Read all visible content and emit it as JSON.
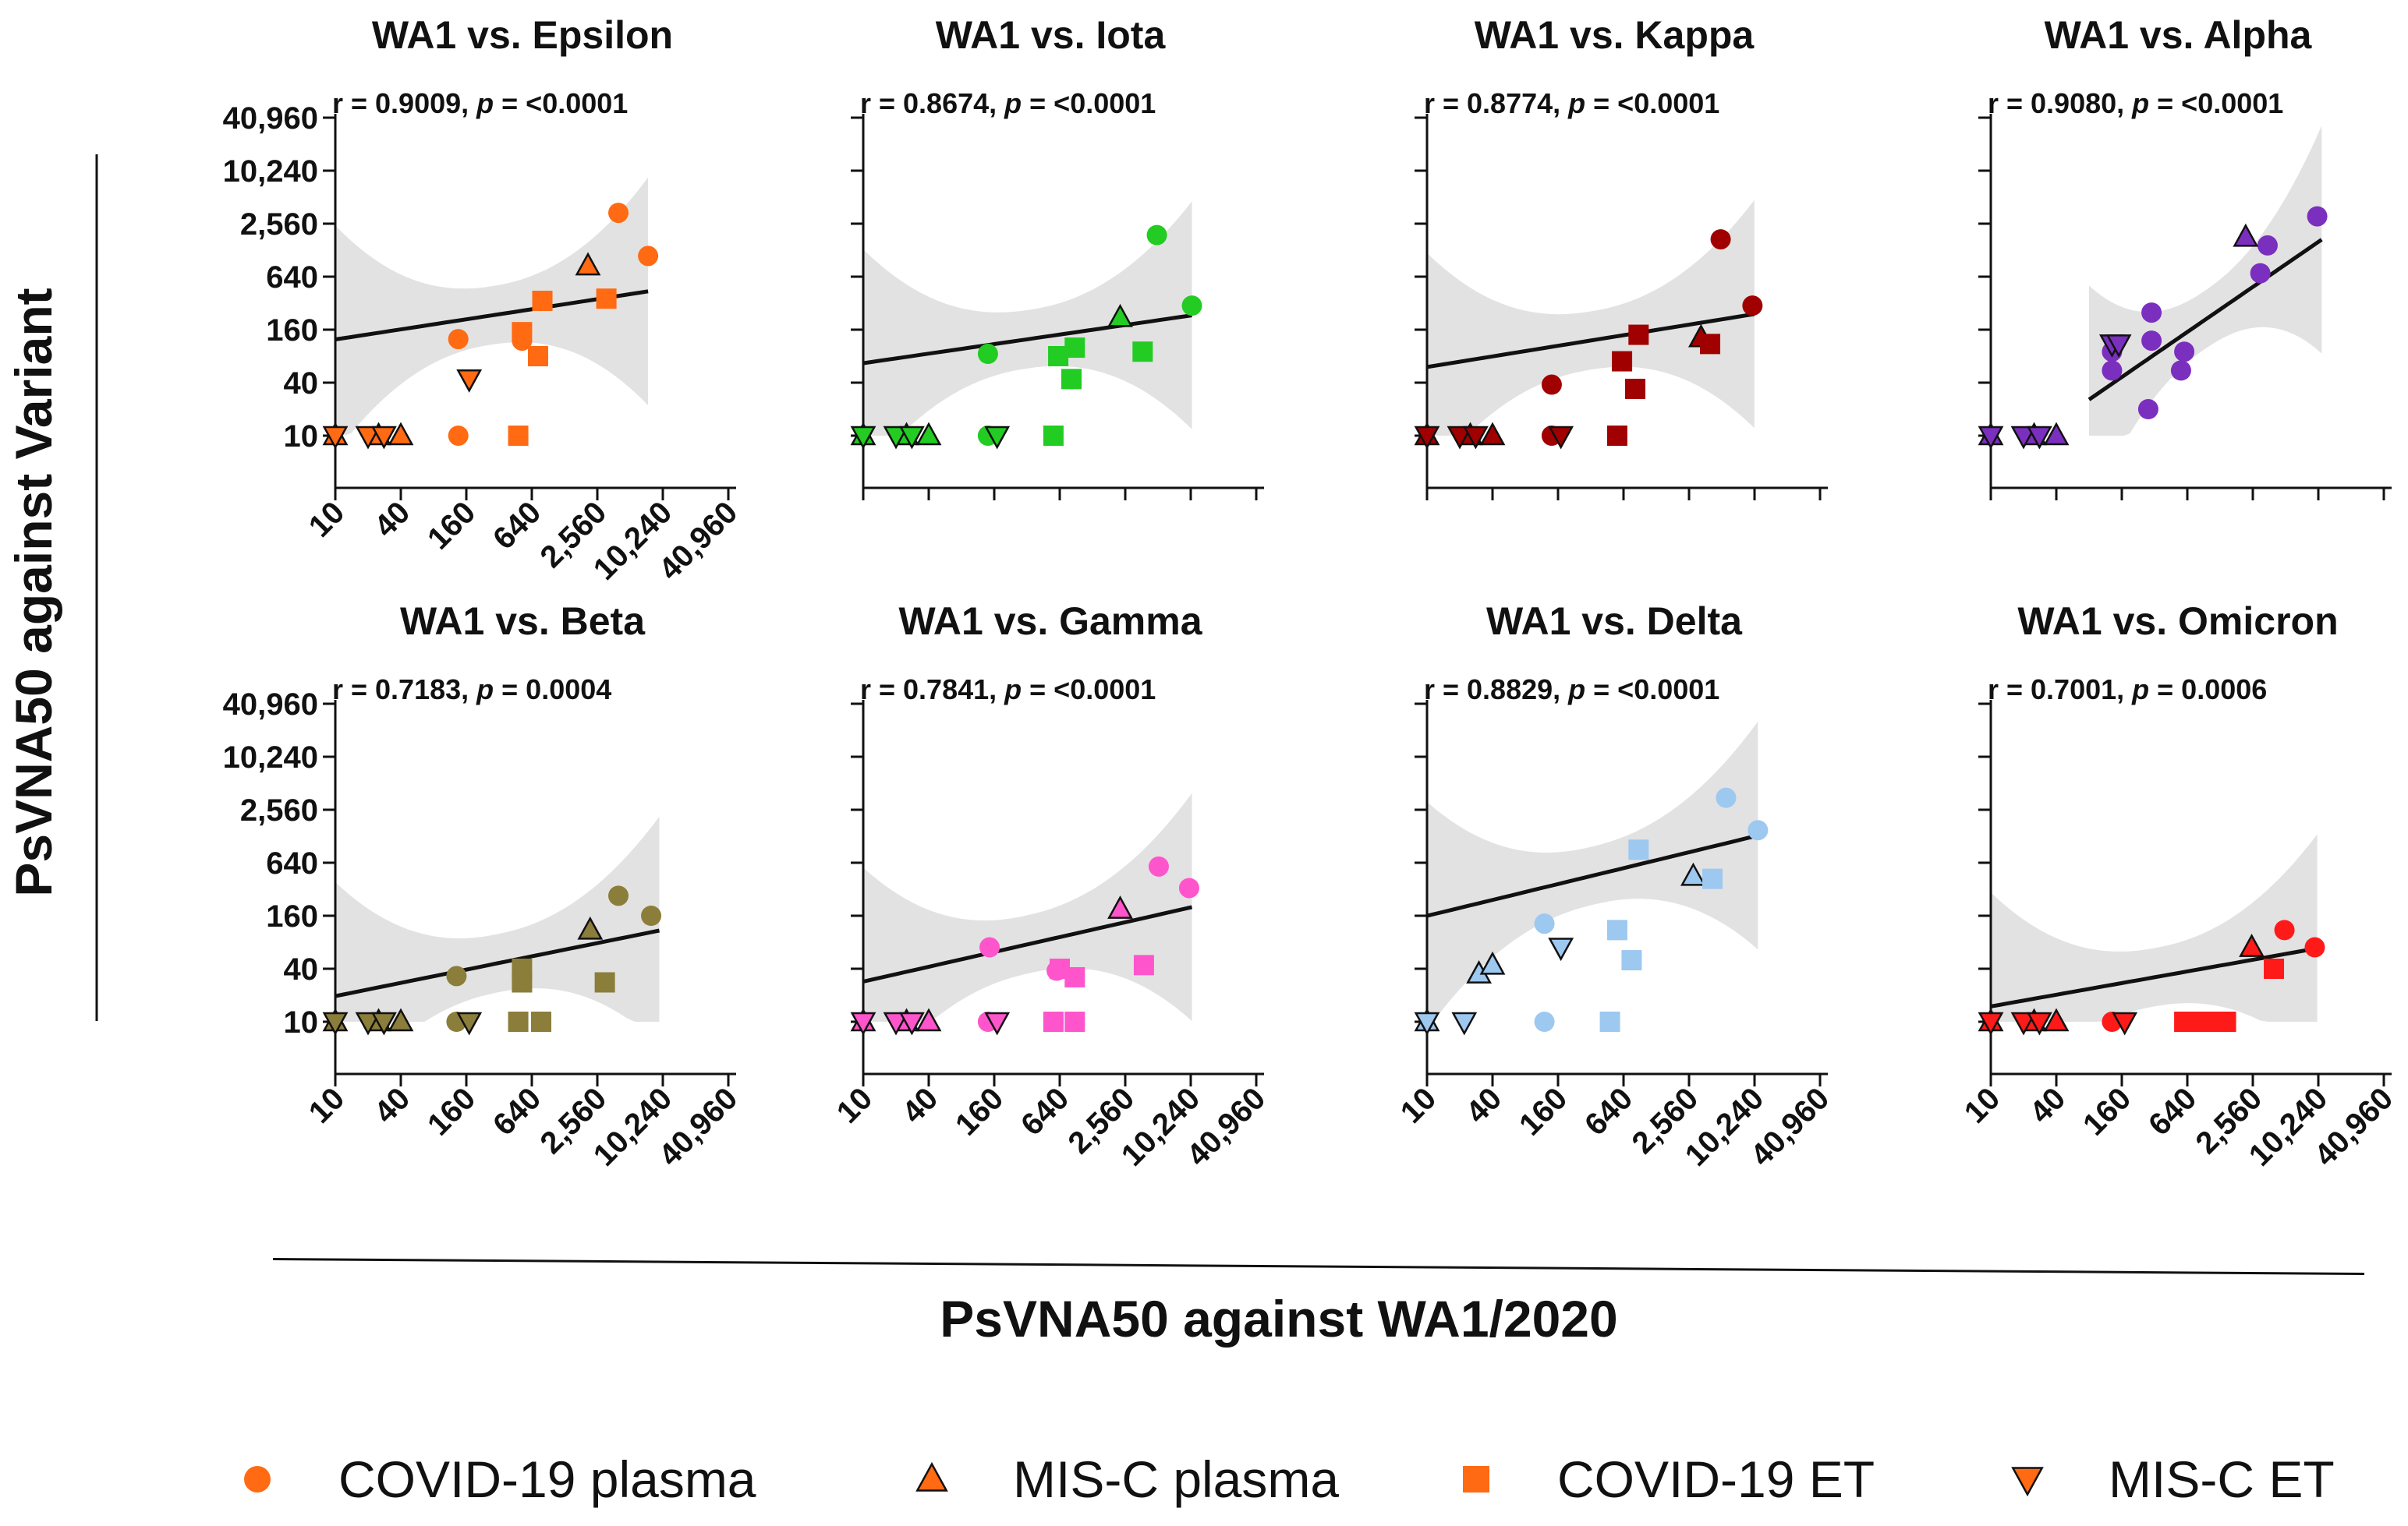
{
  "figure": {
    "ylabel": "PsVNA50 against Variant",
    "xlabel": "PsVNA50 against WA1/2020",
    "legend": [
      {
        "label": "COVID-19 plasma",
        "shape": "circle"
      },
      {
        "label": "MIS-C plasma",
        "shape": "triangle-up"
      },
      {
        "label": "COVID-19 ET",
        "shape": "square"
      },
      {
        "label": "MIS-C ET",
        "shape": "triangle-down"
      }
    ],
    "legend_color": "#FF6A13"
  },
  "chart_data": [
    {
      "type": "scatter",
      "title": "WA1 vs. Epsilon",
      "r": "r = 0.9009, ",
      "p_label": "p",
      "p": " = <0.0001",
      "color": "#FF6A13",
      "xscale": "log4",
      "yscale": "log4",
      "xlim": [
        10,
        40960
      ],
      "ylim": [
        10,
        40960
      ],
      "xticks": [
        "10",
        "40",
        "160",
        "640",
        "2,560",
        "10,240",
        "40,960"
      ],
      "yticks": [
        "10",
        "40",
        "160",
        "640",
        "2,560",
        "10,240",
        "40,960"
      ],
      "fit": {
        "a": 80,
        "b": 0.19,
        "lo": 10,
        "hi": 7500
      },
      "points": [
        {
          "shape": "circle",
          "x": 135,
          "y": 125
        },
        {
          "shape": "circle",
          "x": 135,
          "y": 10
        },
        {
          "shape": "circle",
          "x": 520,
          "y": 120
        },
        {
          "shape": "circle",
          "x": 4000,
          "y": 3400
        },
        {
          "shape": "circle",
          "x": 7500,
          "y": 1100
        },
        {
          "shape": "triangle-up",
          "x": 10,
          "y": 10
        },
        {
          "shape": "triangle-up",
          "x": 25,
          "y": 10
        },
        {
          "shape": "triangle-up",
          "x": 40,
          "y": 10
        },
        {
          "shape": "triangle-up",
          "x": 2100,
          "y": 850
        },
        {
          "shape": "square",
          "x": 480,
          "y": 10
        },
        {
          "shape": "square",
          "x": 520,
          "y": 150
        },
        {
          "shape": "square",
          "x": 730,
          "y": 80
        },
        {
          "shape": "square",
          "x": 800,
          "y": 340
        },
        {
          "shape": "square",
          "x": 3100,
          "y": 360
        },
        {
          "shape": "triangle-down",
          "x": 10,
          "y": 10
        },
        {
          "shape": "triangle-down",
          "x": 20,
          "y": 10
        },
        {
          "shape": "triangle-down",
          "x": 28,
          "y": 10
        },
        {
          "shape": "triangle-down",
          "x": 170,
          "y": 44
        }
      ]
    },
    {
      "type": "scatter",
      "title": "WA1 vs. Iota",
      "r": "r = 0.8674, ",
      "p_label": "p",
      "p": " = <0.0001",
      "color": "#22CC22",
      "xscale": "log4",
      "yscale": "log4",
      "xlim": [
        10,
        40960
      ],
      "ylim": [
        10,
        40960
      ],
      "xticks": [],
      "yticks": [],
      "fit": {
        "a": 44,
        "b": 0.18,
        "lo": 10,
        "hi": 10500
      },
      "points": [
        {
          "shape": "circle",
          "x": 140,
          "y": 85
        },
        {
          "shape": "circle",
          "x": 140,
          "y": 10
        },
        {
          "shape": "circle",
          "x": 5000,
          "y": 1900
        },
        {
          "shape": "circle",
          "x": 10500,
          "y": 300
        },
        {
          "shape": "triangle-up",
          "x": 10,
          "y": 10
        },
        {
          "shape": "triangle-up",
          "x": 25,
          "y": 10
        },
        {
          "shape": "triangle-up",
          "x": 40,
          "y": 10
        },
        {
          "shape": "triangle-up",
          "x": 2300,
          "y": 220
        },
        {
          "shape": "square",
          "x": 560,
          "y": 10
        },
        {
          "shape": "square",
          "x": 620,
          "y": 80
        },
        {
          "shape": "square",
          "x": 820,
          "y": 44
        },
        {
          "shape": "square",
          "x": 880,
          "y": 100
        },
        {
          "shape": "square",
          "x": 3700,
          "y": 90
        },
        {
          "shape": "triangle-down",
          "x": 10,
          "y": 10
        },
        {
          "shape": "triangle-down",
          "x": 20,
          "y": 10
        },
        {
          "shape": "triangle-down",
          "x": 28,
          "y": 10
        },
        {
          "shape": "triangle-down",
          "x": 170,
          "y": 10
        }
      ]
    },
    {
      "type": "scatter",
      "title": "WA1 vs. Kappa",
      "r": "r = 0.8774, ",
      "p_label": "p",
      "p": " = <0.0001",
      "color": "#A00000",
      "xscale": "log4",
      "yscale": "log4",
      "xlim": [
        10,
        40960
      ],
      "ylim": [
        10,
        40960
      ],
      "xticks": [],
      "yticks": [],
      "fit": {
        "a": 38,
        "b": 0.2,
        "lo": 10,
        "hi": 10200
      },
      "points": [
        {
          "shape": "circle",
          "x": 140,
          "y": 38
        },
        {
          "shape": "circle",
          "x": 140,
          "y": 10
        },
        {
          "shape": "circle",
          "x": 5000,
          "y": 1700
        },
        {
          "shape": "circle",
          "x": 9800,
          "y": 300
        },
        {
          "shape": "triangle-up",
          "x": 10,
          "y": 10
        },
        {
          "shape": "triangle-up",
          "x": 25,
          "y": 10
        },
        {
          "shape": "triangle-up",
          "x": 40,
          "y": 10
        },
        {
          "shape": "triangle-up",
          "x": 3300,
          "y": 130
        },
        {
          "shape": "square",
          "x": 560,
          "y": 10
        },
        {
          "shape": "square",
          "x": 620,
          "y": 70
        },
        {
          "shape": "square",
          "x": 820,
          "y": 34
        },
        {
          "shape": "square",
          "x": 880,
          "y": 140
        },
        {
          "shape": "square",
          "x": 4000,
          "y": 110
        },
        {
          "shape": "triangle-down",
          "x": 10,
          "y": 10
        },
        {
          "shape": "triangle-down",
          "x": 20,
          "y": 10
        },
        {
          "shape": "triangle-down",
          "x": 28,
          "y": 10
        },
        {
          "shape": "triangle-down",
          "x": 170,
          "y": 10
        }
      ]
    },
    {
      "type": "scatter",
      "title": "WA1 vs. Alpha",
      "r": "r = 0.9080, ",
      "p_label": "p",
      "p": " = <0.0001",
      "color": "#7B2FBE",
      "xscale": "log4",
      "yscale": "log4",
      "xlim": [
        10,
        40960
      ],
      "ylim": [
        10,
        40960
      ],
      "xticks": [],
      "yticks": [],
      "fit": {
        "a": 0.62,
        "b": 0.85,
        "lo": 80,
        "hi": 11000
      },
      "points": [
        {
          "shape": "circle",
          "x": 130,
          "y": 55
        },
        {
          "shape": "circle",
          "x": 130,
          "y": 90
        },
        {
          "shape": "circle",
          "x": 280,
          "y": 20
        },
        {
          "shape": "circle",
          "x": 300,
          "y": 250
        },
        {
          "shape": "circle",
          "x": 300,
          "y": 120
        },
        {
          "shape": "circle",
          "x": 560,
          "y": 55
        },
        {
          "shape": "circle",
          "x": 600,
          "y": 90
        },
        {
          "shape": "circle",
          "x": 3000,
          "y": 700
        },
        {
          "shape": "circle",
          "x": 3500,
          "y": 1450
        },
        {
          "shape": "circle",
          "x": 10000,
          "y": 3100
        },
        {
          "shape": "triangle-up",
          "x": 10,
          "y": 10
        },
        {
          "shape": "triangle-up",
          "x": 25,
          "y": 10
        },
        {
          "shape": "triangle-up",
          "x": 40,
          "y": 10
        },
        {
          "shape": "triangle-up",
          "x": 2200,
          "y": 1800
        },
        {
          "shape": "triangle-down",
          "x": 10,
          "y": 10
        },
        {
          "shape": "triangle-down",
          "x": 20,
          "y": 10
        },
        {
          "shape": "triangle-down",
          "x": 28,
          "y": 10
        },
        {
          "shape": "triangle-down",
          "x": 130,
          "y": 110
        },
        {
          "shape": "triangle-down",
          "x": 150,
          "y": 110
        }
      ]
    },
    {
      "type": "scatter",
      "title": "WA1 vs. Beta",
      "r": "r = 0.7183, ",
      "p_label": "p",
      "p": " = 0.0004",
      "color": "#8B7D3A",
      "xscale": "log4",
      "yscale": "log4",
      "xlim": [
        10,
        40960
      ],
      "ylim": [
        10,
        40960
      ],
      "xticks": [
        "10",
        "40",
        "160",
        "640",
        "2,560",
        "10,240",
        "40,960"
      ],
      "yticks": [
        "10",
        "40",
        "160",
        "640",
        "2,560",
        "10,240",
        "40,960"
      ],
      "fit": {
        "a": 11,
        "b": 0.25,
        "lo": 10,
        "hi": 9500
      },
      "points": [
        {
          "shape": "circle",
          "x": 130,
          "y": 33
        },
        {
          "shape": "circle",
          "x": 130,
          "y": 10
        },
        {
          "shape": "circle",
          "x": 4000,
          "y": 270
        },
        {
          "shape": "circle",
          "x": 8000,
          "y": 160
        },
        {
          "shape": "triangle-up",
          "x": 10,
          "y": 10
        },
        {
          "shape": "triangle-up",
          "x": 25,
          "y": 10
        },
        {
          "shape": "triangle-up",
          "x": 40,
          "y": 10
        },
        {
          "shape": "triangle-up",
          "x": 2200,
          "y": 110
        },
        {
          "shape": "square",
          "x": 480,
          "y": 10
        },
        {
          "shape": "square",
          "x": 520,
          "y": 40
        },
        {
          "shape": "square",
          "x": 520,
          "y": 28
        },
        {
          "shape": "square",
          "x": 780,
          "y": 10
        },
        {
          "shape": "square",
          "x": 3000,
          "y": 28
        },
        {
          "shape": "triangle-down",
          "x": 10,
          "y": 10
        },
        {
          "shape": "triangle-down",
          "x": 20,
          "y": 10
        },
        {
          "shape": "triangle-down",
          "x": 28,
          "y": 10
        },
        {
          "shape": "triangle-down",
          "x": 170,
          "y": 10
        }
      ]
    },
    {
      "type": "scatter",
      "title": "WA1 vs. Gamma",
      "r": "r = 0.7841, ",
      "p_label": "p",
      "p": " = <0.0001",
      "color": "#FF55CC",
      "xscale": "log4",
      "yscale": "log4",
      "xlim": [
        10,
        40960
      ],
      "ylim": [
        10,
        40960
      ],
      "xticks": [
        "10",
        "40",
        "160",
        "640",
        "2,560",
        "10,240",
        "40,960"
      ],
      "yticks": [],
      "fit": {
        "a": 15,
        "b": 0.28,
        "lo": 10,
        "hi": 10500
      },
      "points": [
        {
          "shape": "circle",
          "x": 145,
          "y": 70
        },
        {
          "shape": "circle",
          "x": 140,
          "y": 10
        },
        {
          "shape": "circle",
          "x": 600,
          "y": 38
        },
        {
          "shape": "circle",
          "x": 5200,
          "y": 580
        },
        {
          "shape": "circle",
          "x": 9900,
          "y": 330
        },
        {
          "shape": "triangle-up",
          "x": 10,
          "y": 10
        },
        {
          "shape": "triangle-up",
          "x": 25,
          "y": 10
        },
        {
          "shape": "triangle-up",
          "x": 40,
          "y": 10
        },
        {
          "shape": "triangle-up",
          "x": 2300,
          "y": 190
        },
        {
          "shape": "square",
          "x": 560,
          "y": 10
        },
        {
          "shape": "square",
          "x": 640,
          "y": 40
        },
        {
          "shape": "square",
          "x": 880,
          "y": 10
        },
        {
          "shape": "square",
          "x": 880,
          "y": 32
        },
        {
          "shape": "square",
          "x": 3800,
          "y": 44
        },
        {
          "shape": "triangle-down",
          "x": 10,
          "y": 10
        },
        {
          "shape": "triangle-down",
          "x": 20,
          "y": 10
        },
        {
          "shape": "triangle-down",
          "x": 28,
          "y": 10
        },
        {
          "shape": "triangle-down",
          "x": 170,
          "y": 10
        }
      ]
    },
    {
      "type": "scatter",
      "title": "WA1 vs. Delta",
      "r": "r = 0.8829, ",
      "p_label": "p",
      "p": " = <0.0001",
      "color": "#9DC8F0",
      "xscale": "log4",
      "yscale": "log4",
      "xlim": [
        10,
        40960
      ],
      "ylim": [
        10,
        40960
      ],
      "xticks": [
        "10",
        "40",
        "160",
        "640",
        "2,560",
        "10,240",
        "40,960"
      ],
      "yticks": [],
      "fit": {
        "a": 80,
        "b": 0.3,
        "lo": 10,
        "hi": 11000
      },
      "points": [
        {
          "shape": "circle",
          "x": 120,
          "y": 130
        },
        {
          "shape": "circle",
          "x": 120,
          "y": 10
        },
        {
          "shape": "circle",
          "x": 5600,
          "y": 3500
        },
        {
          "shape": "circle",
          "x": 11000,
          "y": 1500
        },
        {
          "shape": "triangle-up",
          "x": 10,
          "y": 10
        },
        {
          "shape": "triangle-up",
          "x": 30,
          "y": 35
        },
        {
          "shape": "triangle-up",
          "x": 40,
          "y": 44
        },
        {
          "shape": "triangle-up",
          "x": 2800,
          "y": 450
        },
        {
          "shape": "square",
          "x": 480,
          "y": 10
        },
        {
          "shape": "square",
          "x": 560,
          "y": 110
        },
        {
          "shape": "square",
          "x": 760,
          "y": 50
        },
        {
          "shape": "square",
          "x": 880,
          "y": 900
        },
        {
          "shape": "square",
          "x": 4200,
          "y": 420
        },
        {
          "shape": "triangle-down",
          "x": 10,
          "y": 10
        },
        {
          "shape": "triangle-down",
          "x": 22,
          "y": 10
        },
        {
          "shape": "triangle-down",
          "x": 170,
          "y": 70
        }
      ]
    },
    {
      "type": "scatter",
      "title": "WA1 vs. Omicron",
      "r": "r = 0.7001, ",
      "p_label": "p",
      "p": " = 0.0006",
      "color": "#FF1A1A",
      "xscale": "log4",
      "yscale": "log4",
      "xlim": [
        10,
        40960
      ],
      "ylim": [
        10,
        40960
      ],
      "xticks": [
        "10",
        "40",
        "160",
        "640",
        "2,560",
        "10,240",
        "40,960"
      ],
      "yticks": [],
      "fit": {
        "a": 9,
        "b": 0.22,
        "lo": 10,
        "hi": 10000
      },
      "points": [
        {
          "shape": "circle",
          "x": 130,
          "y": 10
        },
        {
          "shape": "circle",
          "x": 5000,
          "y": 110
        },
        {
          "shape": "circle",
          "x": 9500,
          "y": 70
        },
        {
          "shape": "triangle-up",
          "x": 10,
          "y": 10
        },
        {
          "shape": "triangle-up",
          "x": 25,
          "y": 10
        },
        {
          "shape": "triangle-up",
          "x": 40,
          "y": 10
        },
        {
          "shape": "triangle-up",
          "x": 2500,
          "y": 70
        },
        {
          "shape": "square",
          "x": 600,
          "y": 10
        },
        {
          "shape": "square",
          "x": 850,
          "y": 10
        },
        {
          "shape": "square",
          "x": 1100,
          "y": 10
        },
        {
          "shape": "square",
          "x": 1450,
          "y": 10
        },
        {
          "shape": "square",
          "x": 4000,
          "y": 40
        },
        {
          "shape": "triangle-down",
          "x": 10,
          "y": 10
        },
        {
          "shape": "triangle-down",
          "x": 20,
          "y": 10
        },
        {
          "shape": "triangle-down",
          "x": 28,
          "y": 10
        },
        {
          "shape": "triangle-down",
          "x": 170,
          "y": 10
        }
      ]
    }
  ]
}
